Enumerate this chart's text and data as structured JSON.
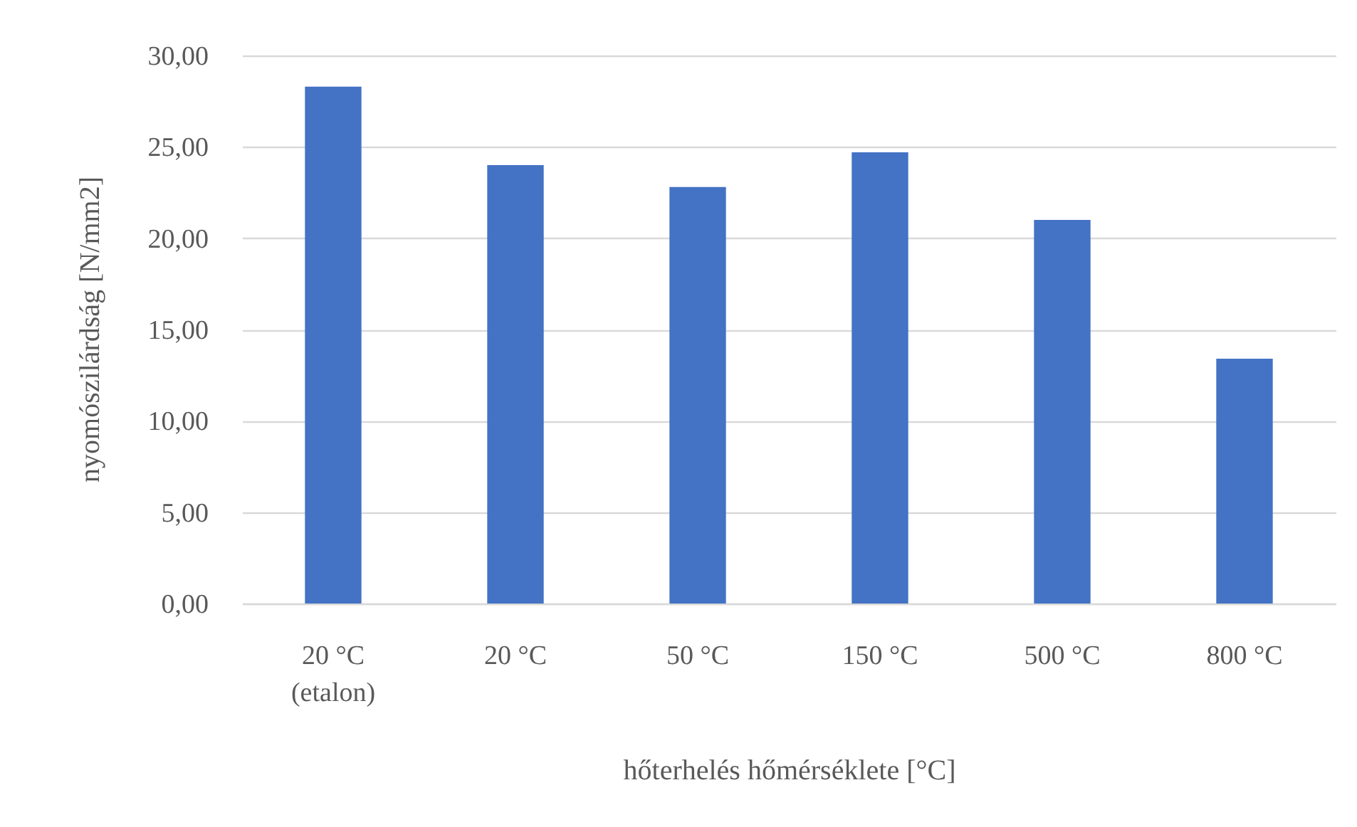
{
  "chart_data": {
    "type": "bar",
    "xlabel": "hőterhelés hőmérséklete [°C]",
    "ylabel": "nyomószilárdság [N/mm2]",
    "categories": [
      "20 °C\n(etalon)",
      "20 °C",
      "50 °C",
      "150 °C",
      "500 °C",
      "800 °C"
    ],
    "values": [
      28.3,
      24.0,
      22.8,
      24.7,
      21.0,
      13.4
    ],
    "color": "#4472c4",
    "ylim": [
      0,
      30
    ],
    "yticks": [
      {
        "value": 0,
        "label": "0,00"
      },
      {
        "value": 5,
        "label": "5,00"
      },
      {
        "value": 10,
        "label": "10,00"
      },
      {
        "value": 15,
        "label": "15,00"
      },
      {
        "value": 20,
        "label": "20,00"
      },
      {
        "value": 25,
        "label": "25,00"
      },
      {
        "value": 30,
        "label": "30,00"
      }
    ],
    "grid": "y"
  }
}
